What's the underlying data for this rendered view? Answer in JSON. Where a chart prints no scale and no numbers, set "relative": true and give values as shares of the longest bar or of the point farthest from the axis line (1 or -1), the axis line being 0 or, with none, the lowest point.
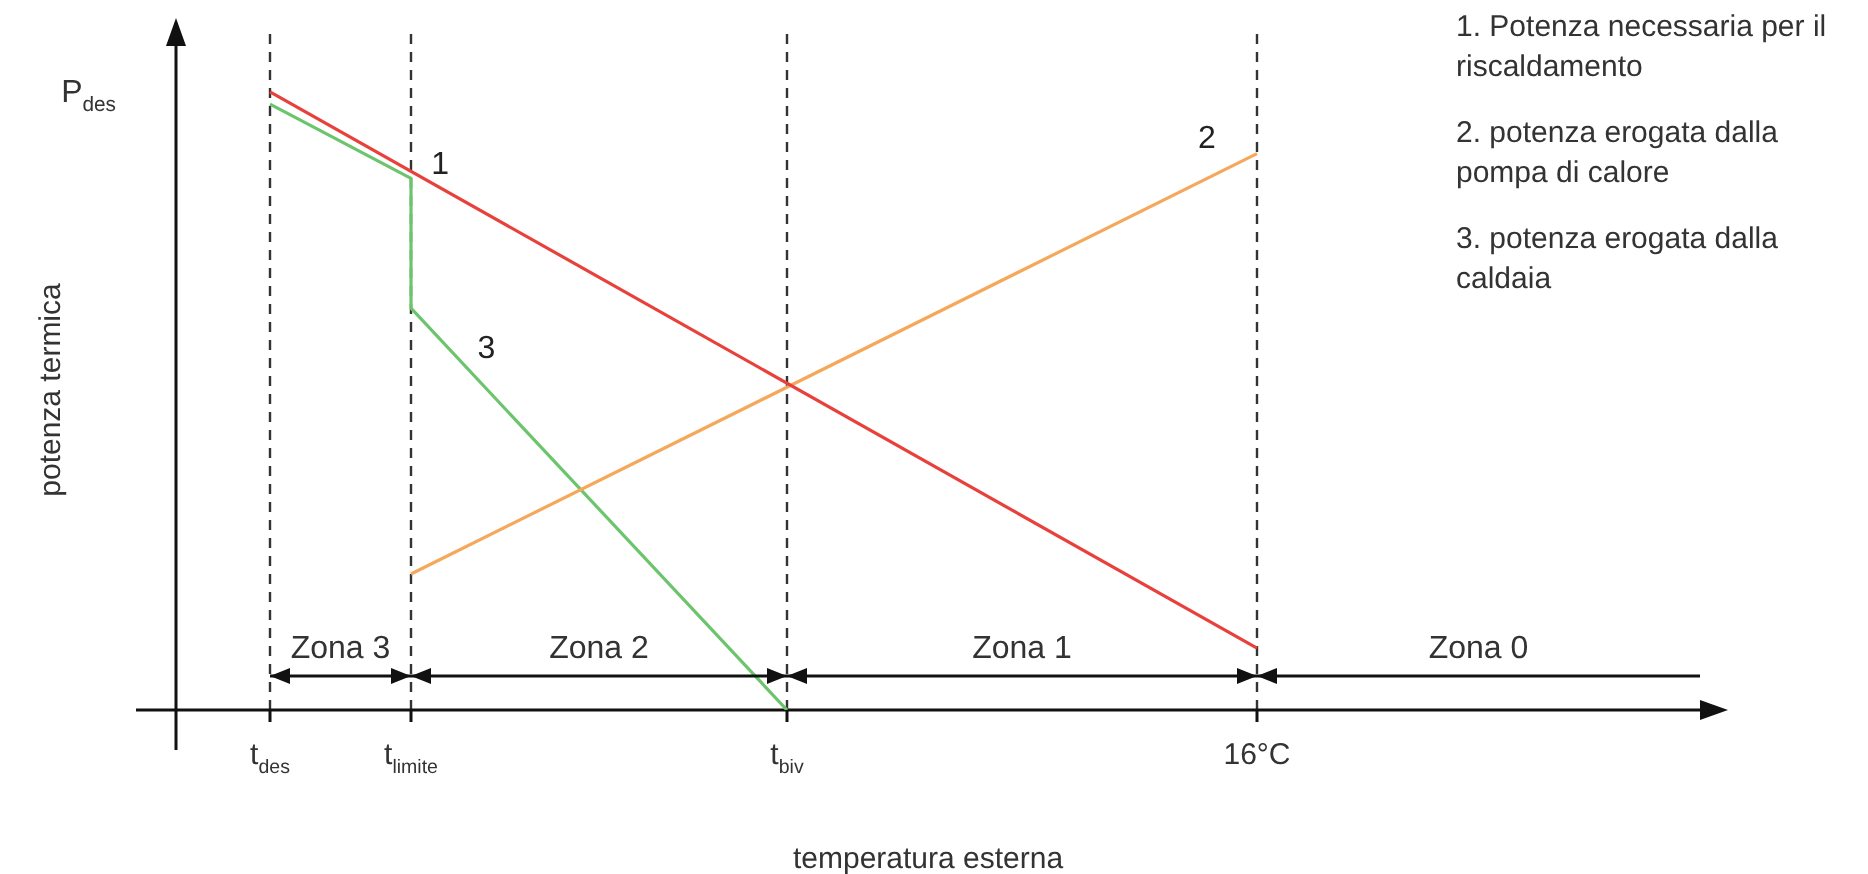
{
  "chart_data": {
    "type": "line",
    "relative": true,
    "xlabel": "temperatura esterna",
    "ylabel": "potenza termica",
    "categories": [
      null,
      null,
      "t$_{des}$",
      null,
      null,
      "t$_{limite}$",
      null,
      null,
      null,
      null,
      null,
      null,
      null,
      "t$_{biv}$",
      null,
      null,
      null,
      null,
      null,
      null,
      null,
      null,
      null,
      "16°C",
      null,
      null,
      null,
      null,
      null,
      null,
      null,
      null,
      null
    ],
    "series": [
      {
        "name": "1",
        "color": "#e8413c",
        "x": [
          "t$_{des}$",
          "16°C"
        ],
        "values": [
          1,
          0.1
        ]
      },
      {
        "name": "2",
        "color": "#f5a85a",
        "x": [
          "t$_{limite}$",
          "16°C"
        ],
        "values": [
          0.22,
          0.9
        ]
      },
      {
        "name": "3",
        "color": "#6cc46c",
        "x": [
          "t$_{des}$",
          "t$_{limite}$",
          "t$_{limite}$",
          "t$_{biv}$"
        ],
        "values": [
          0.98,
          0.86,
          0.65,
          0
        ]
      }
    ],
    "ref_lines": [
      {
        "axis": "x",
        "value": "t$_{des}$",
        "line_style": "dashed"
      },
      {
        "axis": "x",
        "value": "t$_{limite}$",
        "line_style": "dashed"
      },
      {
        "axis": "x",
        "value": "t$_{biv}$",
        "line_style": "dashed"
      },
      {
        "axis": "x",
        "value": "16°C",
        "line_style": "dashed"
      }
    ],
    "annotations": [
      "P$_{des}$",
      "Zona 3",
      "Zona 2",
      "Zona 1",
      "Zona 0",
      "1. Potenza necessaria per il riscaldamento",
      "2. potenza erogata dalla pompa di calore",
      "3. potenza erogata dalla caldaia"
    ],
    "legend": false,
    "grid": false,
    "marker": "none",
    "line_style": "solid"
  }
}
